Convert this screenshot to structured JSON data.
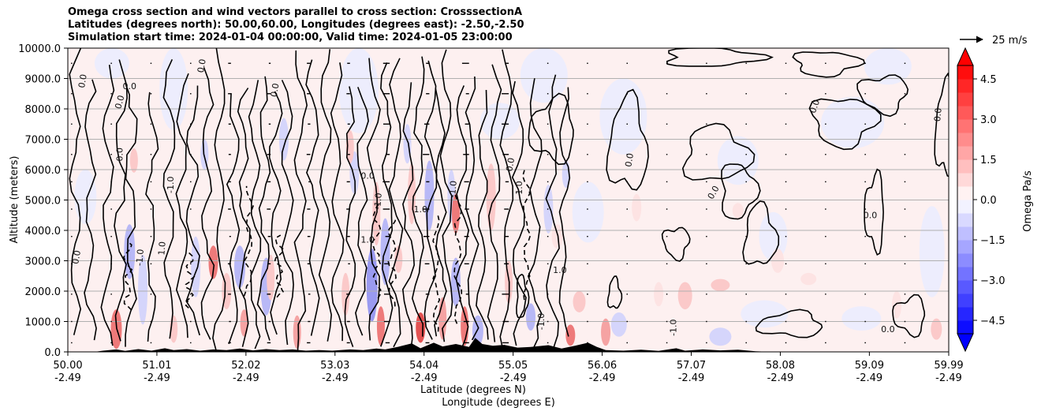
{
  "chart_data": {
    "type": "heatmap",
    "title_lines": [
      "Omega cross section and wind vectors parallel to cross section: CrosssectionA",
      "Latitudes (degrees north): 50.00,60.00, Longitudes (degrees east): -2.50,-2.50",
      "Simulation start time: 2024-01-04 00:00:00, Valid time: 2024-01-05 23:00:00"
    ],
    "ylabel": "Altitude (meters)",
    "xlabel_lat": "Latitude (degrees N)",
    "xlabel_lon": "Longitude (degrees E)",
    "xlim": [
      50.0,
      59.99
    ],
    "ylim": [
      0,
      10000
    ],
    "x_ticks": [
      {
        "value": 50.0,
        "lat": "50.00",
        "lon": "-2.49"
      },
      {
        "value": 51.01,
        "lat": "51.01",
        "lon": "-2.49"
      },
      {
        "value": 52.02,
        "lat": "52.02",
        "lon": "-2.49"
      },
      {
        "value": 53.03,
        "lat": "53.03",
        "lon": "-2.49"
      },
      {
        "value": 54.04,
        "lat": "54.04",
        "lon": "-2.49"
      },
      {
        "value": 55.05,
        "lat": "55.05",
        "lon": "-2.49"
      },
      {
        "value": 56.06,
        "lat": "56.06",
        "lon": "-2.49"
      },
      {
        "value": 57.07,
        "lat": "57.07",
        "lon": "-2.49"
      },
      {
        "value": 58.08,
        "lat": "58.08",
        "lon": "-2.49"
      },
      {
        "value": 59.09,
        "lat": "59.09",
        "lon": "-2.49"
      },
      {
        "value": 59.99,
        "lat": "59.99",
        "lon": "-2.49"
      }
    ],
    "y_ticks": [
      {
        "value": 0,
        "label": "0.0"
      },
      {
        "value": 1000,
        "label": "1000.0"
      },
      {
        "value": 2000,
        "label": "2000.0"
      },
      {
        "value": 3000,
        "label": "3000.0"
      },
      {
        "value": 4000,
        "label": "4000.0"
      },
      {
        "value": 5000,
        "label": "5000.0"
      },
      {
        "value": 6000,
        "label": "6000.0"
      },
      {
        "value": 7000,
        "label": "7000.0"
      },
      {
        "value": 8000,
        "label": "8000.0"
      },
      {
        "value": 9000,
        "label": "9000.0"
      },
      {
        "value": 10000,
        "label": "10000.0"
      }
    ],
    "grid": true,
    "colorbar": {
      "label": "Omega Pa/s",
      "min": -5.0,
      "max": 5.0,
      "levels": 20,
      "ticks": [
        {
          "value": 4.5,
          "label": "4.5"
        },
        {
          "value": 3.0,
          "label": "3.0"
        },
        {
          "value": 1.5,
          "label": "1.5"
        },
        {
          "value": 0.0,
          "label": "0.0"
        },
        {
          "value": -1.5,
          "label": "−1.5"
        },
        {
          "value": -3.0,
          "label": "−3.0"
        },
        {
          "value": -4.5,
          "label": "−4.5"
        }
      ],
      "extend": "both"
    },
    "quiver_key": {
      "label": "25 m/s",
      "speed": 25
    },
    "contour_levels": [
      -1.0,
      0.0,
      1.0
    ],
    "contour_labels": [
      {
        "lat": 50.62,
        "alt": 8200,
        "text": "0.0",
        "rot": -75
      },
      {
        "lat": 50.2,
        "alt": 8900,
        "text": "0.0",
        "rot": -80
      },
      {
        "lat": 50.7,
        "alt": 8650,
        "text": "0.0",
        "rot": 0
      },
      {
        "lat": 50.13,
        "alt": 3100,
        "text": "0.0",
        "rot": -80
      },
      {
        "lat": 50.62,
        "alt": 6500,
        "text": "0.0",
        "rot": -90
      },
      {
        "lat": 51.2,
        "alt": 5500,
        "text": "-1.0",
        "rot": -90
      },
      {
        "lat": 50.85,
        "alt": 3100,
        "text": "-1.0",
        "rot": -85
      },
      {
        "lat": 51.1,
        "alt": 3400,
        "text": "1.0",
        "rot": -85
      },
      {
        "lat": 51.55,
        "alt": 9400,
        "text": "0.0",
        "rot": -80
      },
      {
        "lat": 52.38,
        "alt": 8600,
        "text": "0.0",
        "rot": -80
      },
      {
        "lat": 53.4,
        "alt": 5700,
        "text": "0.0",
        "rot": 0
      },
      {
        "lat": 53.4,
        "alt": 3600,
        "text": "1.0",
        "rot": 0
      },
      {
        "lat": 53.55,
        "alt": 4950,
        "text": "-1.0",
        "rot": -85
      },
      {
        "lat": 54.0,
        "alt": 4600,
        "text": "1.0",
        "rot": 0
      },
      {
        "lat": 54.4,
        "alt": 5350,
        "text": "-1.0",
        "rot": -85
      },
      {
        "lat": 55.05,
        "alt": 6150,
        "text": "0.0",
        "rot": -80
      },
      {
        "lat": 55.15,
        "alt": 5350,
        "text": "-1.0",
        "rot": -90
      },
      {
        "lat": 55.58,
        "alt": 2600,
        "text": "1.0",
        "rot": 0
      },
      {
        "lat": 56.4,
        "alt": 6300,
        "text": "0.0",
        "rot": -80
      },
      {
        "lat": 57.35,
        "alt": 5200,
        "text": "0.0",
        "rot": -60
      },
      {
        "lat": 58.5,
        "alt": 8050,
        "text": "0.0",
        "rot": -70
      },
      {
        "lat": 59.1,
        "alt": 4400,
        "text": "0.0",
        "rot": 0
      },
      {
        "lat": 59.3,
        "alt": 650,
        "text": "0.0",
        "rot": 0
      },
      {
        "lat": 59.9,
        "alt": 7800,
        "text": "0.0",
        "rot": -85
      },
      {
        "lat": 56.9,
        "alt": 800,
        "text": "-1.0",
        "rot": -90
      },
      {
        "lat": 55.4,
        "alt": 1000,
        "text": "-1.0",
        "rot": -90
      }
    ]
  }
}
